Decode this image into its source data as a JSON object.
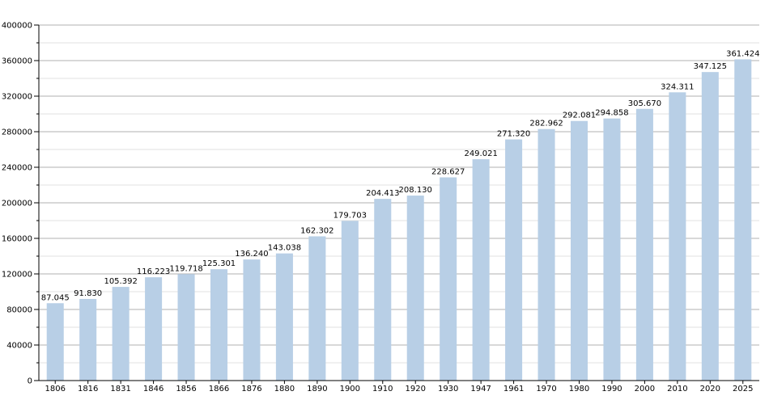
{
  "chart_data": {
    "type": "bar",
    "title": "",
    "xlabel": "",
    "ylabel": "",
    "ylim": [
      0,
      400000
    ],
    "yticks": [
      0,
      40000,
      80000,
      120000,
      160000,
      200000,
      240000,
      280000,
      320000,
      360000,
      400000
    ],
    "ytick_labels": [
      "0",
      "40000",
      "80000",
      "120000",
      "160000",
      "200000",
      "240000",
      "280000",
      "320000",
      "360000",
      "400000"
    ],
    "minor_gridlines": true,
    "grid": true,
    "legend": "none",
    "bar_color": "#b8cfe6",
    "grid_color": "#b0b0b0",
    "minor_grid_color": "#e2e2e2",
    "categories": [
      "1806",
      "1816",
      "1831",
      "1846",
      "1856",
      "1866",
      "1876",
      "1880",
      "1890",
      "1900",
      "1910",
      "1920",
      "1930",
      "1947",
      "1961",
      "1970",
      "1980",
      "1990",
      "2000",
      "2010",
      "2020",
      "2025"
    ],
    "values": [
      87045,
      91830,
      105392,
      116223,
      119718,
      125301,
      136240,
      143038,
      162302,
      179703,
      204413,
      208130,
      228627,
      249021,
      271320,
      282962,
      292081,
      294858,
      305670,
      324311,
      347125,
      361424
    ],
    "value_labels": [
      "87.045",
      "91.830",
      "105.392",
      "116.223",
      "119.718",
      "125.301",
      "136.240",
      "143.038",
      "162.302",
      "179.703",
      "204.413",
      "208.130",
      "228.627",
      "249.021",
      "271.320",
      "282.962",
      "292.081",
      "294.858",
      "305.670",
      "324.311",
      "347.125",
      "361.424"
    ]
  }
}
